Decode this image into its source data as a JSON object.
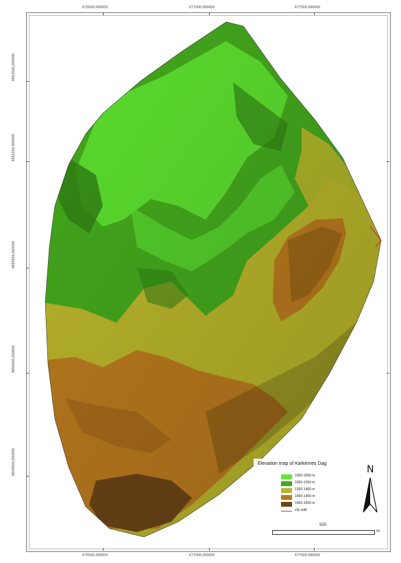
{
  "map": {
    "top_ticks": [
      "675500,000000",
      "677000,000000",
      "677500,000000"
    ],
    "bottom_ticks": [
      "675500,000000",
      "677000,000000",
      "677500,000000"
    ],
    "left_ticks": [
      "4851500,000000",
      "4851000,000000",
      "4850500,000000",
      "4850000,000000",
      "4849500,000000"
    ],
    "right_ticks": []
  },
  "legend": {
    "title": "Elevation map of Karkemes Dag",
    "items": [
      {
        "label": "1000-1500 m",
        "color": "#5fe632"
      },
      {
        "label": "1000-1250 m",
        "color": "#44a81c"
      },
      {
        "label": "1250-1400 m",
        "color": "#b9b52b"
      },
      {
        "label": "1400-1450 m",
        "color": "#b97a1e"
      },
      {
        "label": "1450-1500 m",
        "color": "#6b4417"
      },
      {
        "label": "city wall",
        "color": "#c0392b",
        "type": "line"
      }
    ]
  },
  "north_arrow": {
    "label": "N"
  },
  "scale": {
    "label": "500",
    "unit": "m"
  }
}
